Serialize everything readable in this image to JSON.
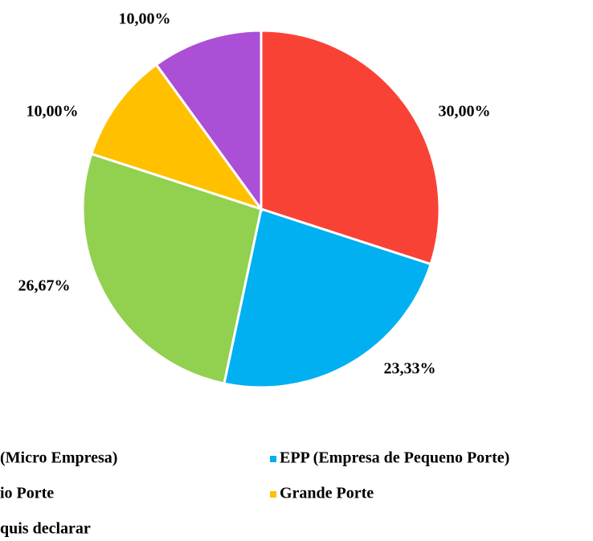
{
  "chart_data": {
    "type": "pie",
    "categories": [
      "(Micro Empresa)",
      "EPP (Empresa de Pequeno Porte)",
      "io Porte",
      "Grande Porte",
      "quis declarar"
    ],
    "values": [
      30,
      23.33,
      26.67,
      10,
      10
    ],
    "value_labels": [
      "30,00%",
      "23,33%",
      "26,67%",
      "10,00%",
      "10,00%"
    ],
    "colors": [
      "#f94236",
      "#00b0f0",
      "#92d050",
      "#ffc000",
      "#ab4fd6"
    ],
    "legend": "bottom"
  }
}
